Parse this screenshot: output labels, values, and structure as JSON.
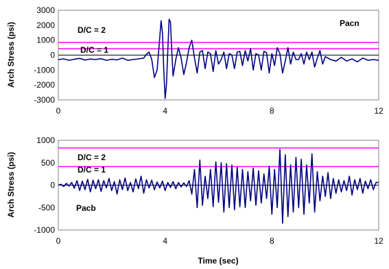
{
  "chart_data": [
    {
      "type": "line",
      "title": "Pacn",
      "xlabel": "",
      "ylabel": "Arch Stress (psi)",
      "xlim": [
        0,
        12
      ],
      "ylim": [
        -3000,
        3000
      ],
      "xticks": [
        0,
        4,
        8,
        12
      ],
      "yticks": [
        -3000,
        -2000,
        -1000,
        0,
        1000,
        2000,
        3000
      ],
      "grid": false,
      "line_color": "#000080",
      "reference_lines": [
        {
          "label": "D/C = 2",
          "y": 850,
          "color": "#ff00ff"
        },
        {
          "label": "D/C = 1",
          "y": 425,
          "color": "#ff00ff"
        }
      ],
      "series": [
        {
          "x": [
            0,
            0.2,
            0.4,
            0.6,
            0.8,
            1.0,
            1.2,
            1.4,
            1.6,
            1.8,
            2.0,
            2.2,
            2.4,
            2.6,
            2.8,
            3.0,
            3.2,
            3.3,
            3.4,
            3.5,
            3.6,
            3.7,
            3.8,
            3.85,
            3.9,
            3.95,
            4.0,
            4.05,
            4.1,
            4.15,
            4.2,
            4.25,
            4.3,
            4.4,
            4.5,
            4.6,
            4.7,
            4.8,
            4.9,
            5.0,
            5.1,
            5.2,
            5.3,
            5.4,
            5.5,
            5.6,
            5.7,
            5.8,
            5.9,
            6.0,
            6.1,
            6.2,
            6.3,
            6.4,
            6.5,
            6.6,
            6.7,
            6.8,
            6.9,
            7.0,
            7.1,
            7.2,
            7.3,
            7.4,
            7.5,
            7.6,
            7.7,
            7.8,
            7.9,
            8.0,
            8.1,
            8.2,
            8.3,
            8.4,
            8.5,
            8.6,
            8.7,
            8.8,
            8.9,
            9.0,
            9.1,
            9.2,
            9.3,
            9.4,
            9.5,
            9.6,
            9.7,
            9.8,
            9.9,
            10.0,
            10.2,
            10.4,
            10.6,
            10.8,
            11.0,
            11.2,
            11.4,
            11.6,
            11.8,
            12.0
          ],
          "y": [
            -300,
            -250,
            -350,
            -280,
            -220,
            -330,
            -260,
            -300,
            -240,
            -350,
            -280,
            -320,
            -200,
            -350,
            -300,
            -250,
            -200,
            50,
            200,
            -300,
            -1500,
            -1000,
            1200,
            2300,
            1500,
            -1000,
            -2900,
            -2000,
            300,
            2400,
            2200,
            200,
            -1400,
            -300,
            500,
            -200,
            -1300,
            -500,
            500,
            1000,
            -200,
            -1200,
            200,
            300,
            -900,
            200,
            100,
            -1100,
            300,
            -600,
            -300,
            200,
            -900,
            100,
            0,
            -900,
            200,
            250,
            -700,
            300,
            -400,
            450,
            -1000,
            100,
            0,
            -1000,
            250,
            150,
            -1200,
            100,
            -700,
            500,
            100,
            -1200,
            -400,
            500,
            -600,
            200,
            -300,
            -300,
            100,
            -600,
            200,
            -300,
            200,
            -800,
            -200,
            300,
            -600,
            -100,
            -300,
            -400,
            -150,
            -400,
            -250,
            -450,
            -200,
            -350,
            -300,
            -350
          ]
        }
      ]
    },
    {
      "type": "line",
      "title": "Pacb",
      "xlabel": "Time (sec)",
      "ylabel": "Arch Stress (psi)",
      "xlim": [
        0,
        12
      ],
      "ylim": [
        -1000,
        1000
      ],
      "xticks": [
        0,
        4,
        8,
        12
      ],
      "yticks": [
        -1000,
        -500,
        0,
        500,
        1000
      ],
      "grid": false,
      "line_color": "#000080",
      "reference_lines": [
        {
          "label": "D/C = 2",
          "y": 830,
          "color": "#ff00ff"
        },
        {
          "label": "D/C = 1",
          "y": 415,
          "color": "#ff00ff"
        }
      ],
      "series": [
        {
          "x": [
            0,
            0.1,
            0.2,
            0.3,
            0.4,
            0.5,
            0.6,
            0.7,
            0.8,
            0.9,
            1.0,
            1.1,
            1.2,
            1.3,
            1.4,
            1.5,
            1.6,
            1.7,
            1.8,
            1.9,
            2.0,
            2.1,
            2.2,
            2.3,
            2.4,
            2.5,
            2.6,
            2.7,
            2.8,
            2.9,
            3.0,
            3.1,
            3.2,
            3.3,
            3.4,
            3.5,
            3.6,
            3.7,
            3.8,
            3.9,
            4.0,
            4.1,
            4.2,
            4.3,
            4.4,
            4.5,
            4.6,
            4.7,
            4.8,
            4.9,
            5.0,
            5.1,
            5.2,
            5.3,
            5.4,
            5.5,
            5.6,
            5.7,
            5.8,
            5.9,
            6.0,
            6.1,
            6.2,
            6.3,
            6.4,
            6.5,
            6.6,
            6.7,
            6.8,
            6.9,
            7.0,
            7.1,
            7.2,
            7.3,
            7.4,
            7.5,
            7.6,
            7.7,
            7.8,
            7.9,
            8.0,
            8.1,
            8.2,
            8.3,
            8.4,
            8.5,
            8.6,
            8.7,
            8.8,
            8.9,
            9.0,
            9.1,
            9.2,
            9.3,
            9.4,
            9.5,
            9.6,
            9.7,
            9.8,
            9.9,
            10.0,
            10.1,
            10.2,
            10.3,
            10.4,
            10.5,
            10.6,
            10.7,
            10.8,
            10.9,
            11.0,
            11.1,
            11.2,
            11.3,
            11.4,
            11.5,
            11.6,
            11.7,
            11.8,
            11.9,
            12.0
          ],
          "y": [
            0,
            20,
            -30,
            40,
            -20,
            60,
            -70,
            100,
            -120,
            90,
            -100,
            130,
            -150,
            110,
            -80,
            120,
            -140,
            100,
            -60,
            150,
            -120,
            80,
            -200,
            120,
            -100,
            160,
            -120,
            60,
            -150,
            140,
            -80,
            200,
            -180,
            120,
            -60,
            110,
            -100,
            70,
            -60,
            90,
            -120,
            60,
            -50,
            80,
            -80,
            60,
            -40,
            50,
            -30,
            100,
            -200,
            350,
            -500,
            560,
            -450,
            200,
            -300,
            350,
            -480,
            520,
            -380,
            500,
            -600,
            480,
            -500,
            450,
            -550,
            400,
            -480,
            350,
            -500,
            300,
            -350,
            380,
            -450,
            320,
            -400,
            250,
            -300,
            420,
            -650,
            350,
            -500,
            800,
            -850,
            680,
            -700,
            450,
            -600,
            620,
            -500,
            580,
            -650,
            450,
            -400,
            700,
            -600,
            300,
            -350,
            200,
            -250,
            280,
            -300,
            150,
            -180,
            120,
            -150,
            100,
            -120,
            200,
            -220,
            120,
            -100,
            150,
            -180,
            90,
            -80,
            120,
            -100,
            60,
            60
          ]
        }
      ]
    }
  ]
}
